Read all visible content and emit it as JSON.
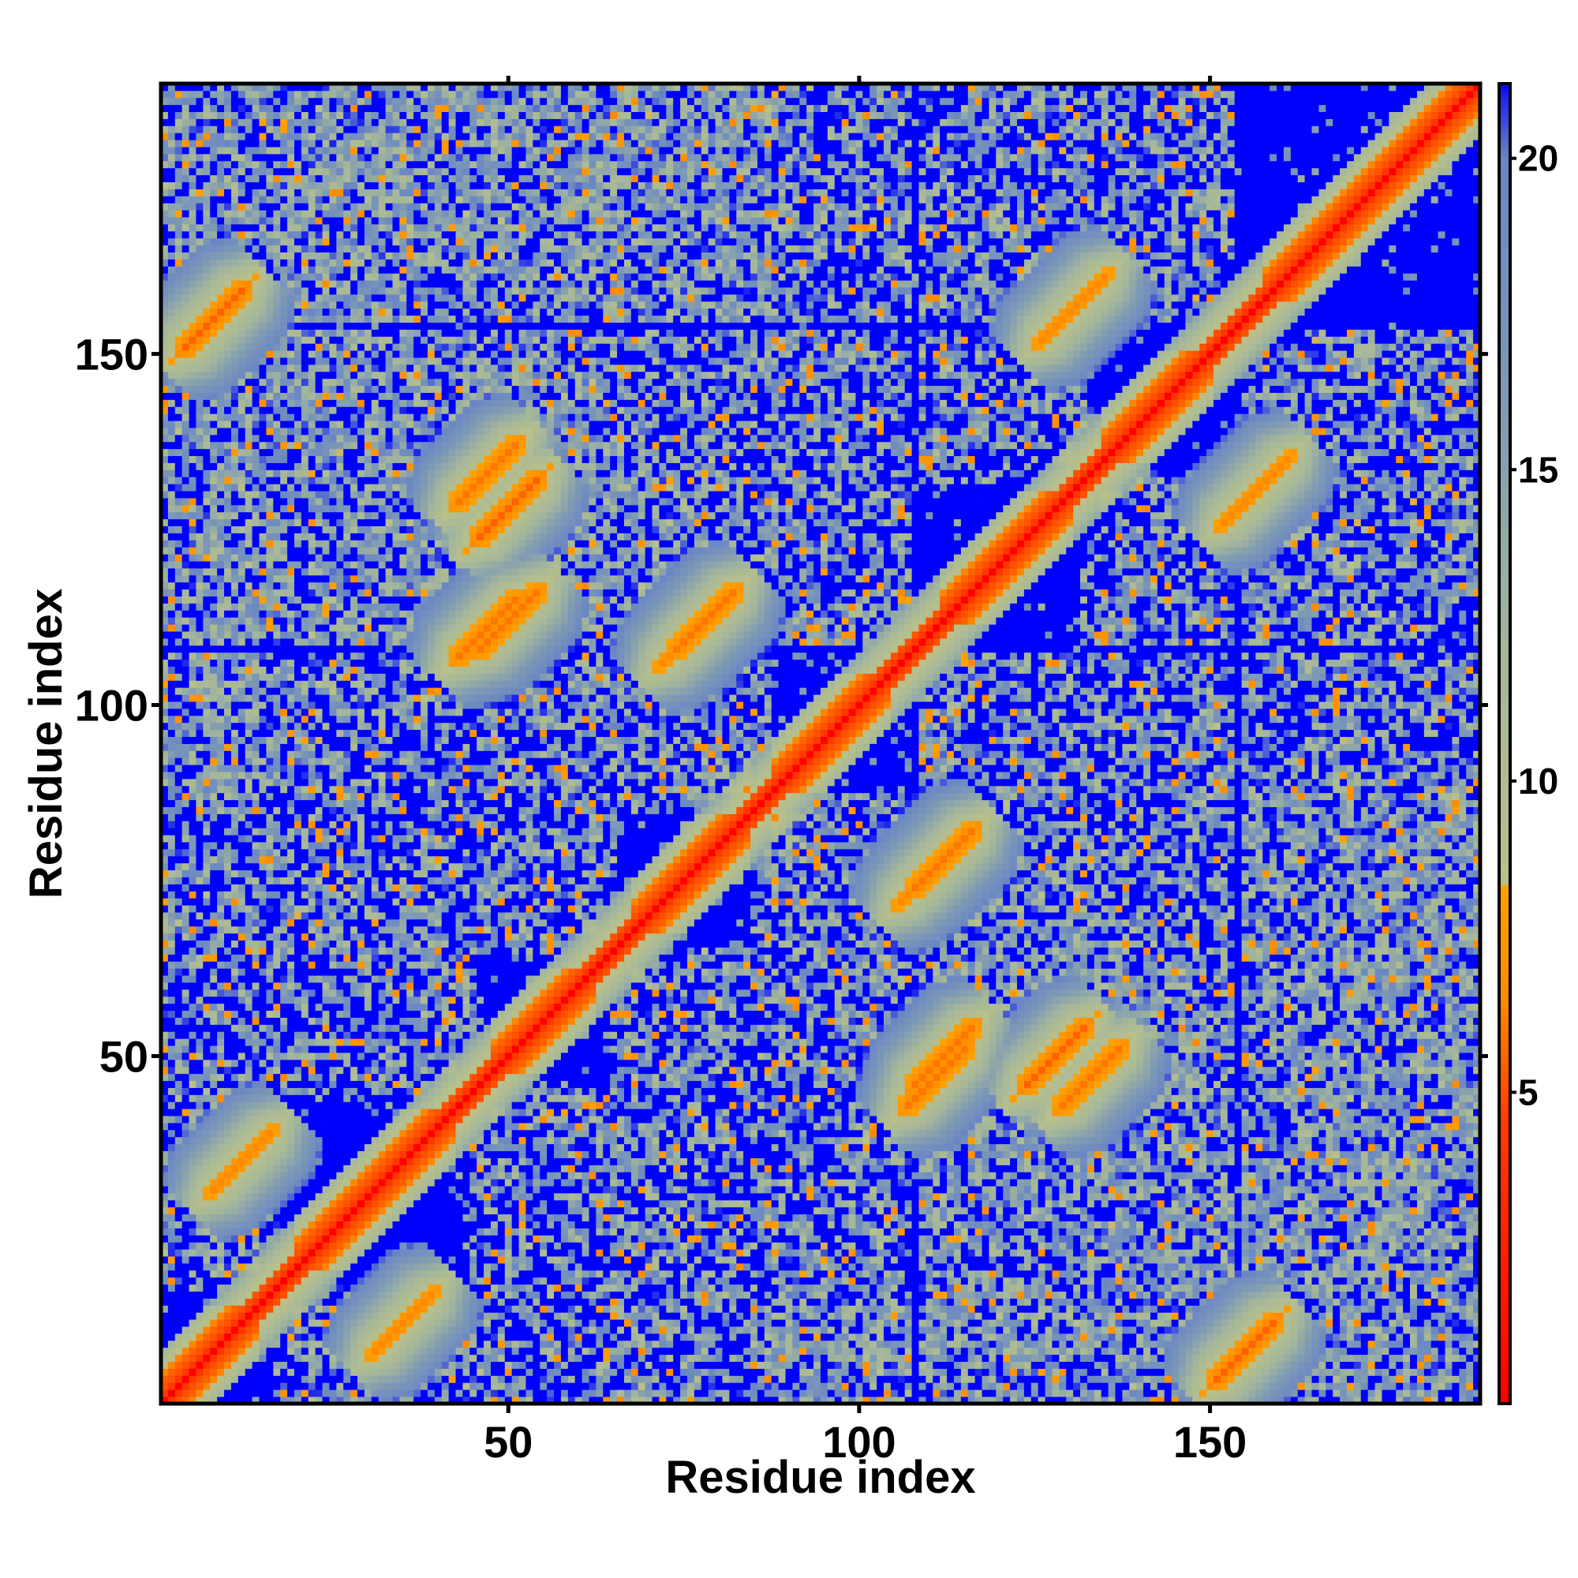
{
  "chart_data": {
    "type": "heatmap",
    "title": "",
    "xlabel": "Residue index",
    "ylabel": "Residue index",
    "n_residues": 188,
    "xlim": [
      1,
      188
    ],
    "ylim": [
      1,
      188
    ],
    "x_ticks": [
      50,
      100,
      150
    ],
    "y_ticks": [
      50,
      100,
      150
    ],
    "colorbar": {
      "ticks": [
        5,
        10,
        15,
        20
      ],
      "range": [
        0,
        21.2
      ],
      "cutoff": 21,
      "stops": [
        {
          "value": 0,
          "color": "#ff0000"
        },
        {
          "value": 4.5,
          "color": "#ff3a00"
        },
        {
          "value": 6.5,
          "color": "#ff8a00"
        },
        {
          "value": 8.3,
          "color": "#ffa000"
        },
        {
          "value": 8.35,
          "color": "#b9c08a"
        },
        {
          "value": 12,
          "color": "#a5b79a"
        },
        {
          "value": 16,
          "color": "#7f9ab4"
        },
        {
          "value": 20,
          "color": "#6a86c4"
        },
        {
          "value": 21,
          "color": "#1a22f0"
        }
      ],
      "background_color": "#0000ff"
    },
    "grid": false,
    "structure_features": {
      "diagonal_self_distance": 0,
      "helices": [
        [
          1,
          14
        ],
        [
          20,
          42
        ],
        [
          48,
          62
        ],
        [
          68,
          84
        ],
        [
          88,
          104
        ],
        [
          112,
          130
        ],
        [
          135,
          150
        ],
        [
          158,
          188
        ]
      ],
      "contact_patches": [
        {
          "i": 8,
          "j": 155,
          "dist": 5.5,
          "direction": "parallel"
        },
        {
          "i": 50,
          "j": 128,
          "dist": 5.5,
          "direction": "parallel"
        },
        {
          "i": 50,
          "j": 112,
          "dist": 6.0,
          "direction": "parallel"
        },
        {
          "i": 112,
          "j": 78,
          "dist": 6.0,
          "direction": "parallel"
        },
        {
          "i": 47,
          "j": 133,
          "dist": 6.0,
          "direction": "parallel"
        },
        {
          "i": 47,
          "j": 111,
          "dist": 6.0,
          "direction": "parallel"
        },
        {
          "i": 76,
          "j": 110,
          "dist": 6.5,
          "direction": "parallel"
        },
        {
          "i": 130,
          "j": 156,
          "dist": 6.5,
          "direction": "parallel"
        },
        {
          "i": 157,
          "j": 131,
          "dist": 6.5,
          "direction": "parallel"
        },
        {
          "i": 12,
          "j": 35,
          "dist": 6.5,
          "direction": "parallel"
        }
      ],
      "background_contact_density": "moderate"
    }
  }
}
